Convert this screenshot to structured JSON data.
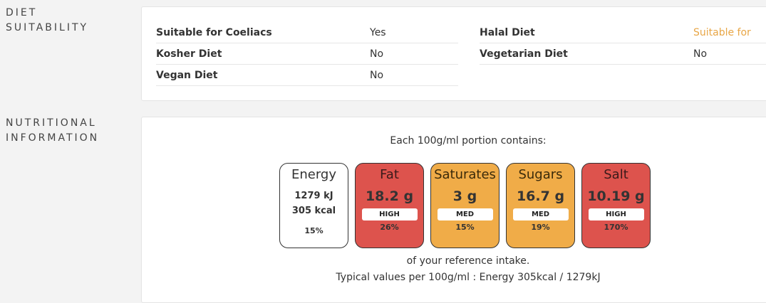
{
  "diet": {
    "section_label": [
      "DIET",
      "SUITABILITY"
    ],
    "left": [
      {
        "label": "Suitable for Coeliacs",
        "value": "Yes"
      },
      {
        "label": "Kosher Diet",
        "value": "No"
      },
      {
        "label": "Vegan Diet",
        "value": "No"
      }
    ],
    "right": [
      {
        "label": "Halal Diet",
        "value": "Suitable for",
        "accent": true
      },
      {
        "label": "Vegetarian Diet",
        "value": "No"
      }
    ],
    "accent_color": "#e8a646"
  },
  "nutrition": {
    "section_label": [
      "NUTRITIONAL",
      "INFORMATION"
    ],
    "intro": "Each 100g/ml portion contains:",
    "energy": {
      "name": "Energy",
      "kj": "1279 kJ",
      "kcal": "305 kcal",
      "percent": "15%"
    },
    "tiles": [
      {
        "name": "Fat",
        "amount": "18.2 g",
        "level": "HIGH",
        "percent": "26%",
        "color": "#dd534d"
      },
      {
        "name": "Saturates",
        "amount": "3 g",
        "level": "MED",
        "percent": "15%",
        "color": "#f0ac48"
      },
      {
        "name": "Sugars",
        "amount": "16.7 g",
        "level": "MED",
        "percent": "19%",
        "color": "#f0ac48"
      },
      {
        "name": "Salt",
        "amount": "10.19 g",
        "level": "HIGH",
        "percent": "170%",
        "color": "#dd534d"
      }
    ],
    "footer_1": "of your reference intake.",
    "footer_2": "Typical values per 100g/ml : Energy 305kcal / 1279kJ"
  }
}
